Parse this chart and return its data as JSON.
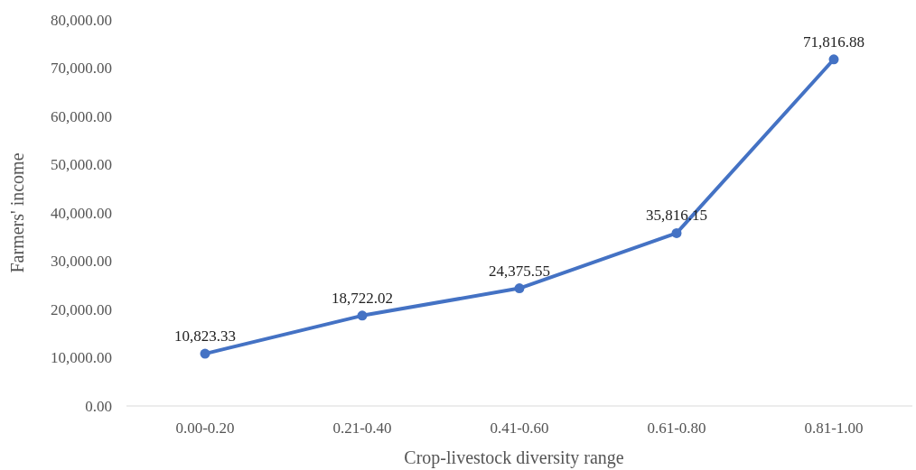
{
  "chart_data": {
    "type": "line",
    "xlabel": "Crop-livestock diversity range",
    "ylabel": "Farmers' income",
    "categories": [
      "0.00-0.20",
      "0.21-0.40",
      "0.41-0.60",
      "0.61-0.80",
      "0.81-1.00"
    ],
    "series": [
      {
        "color": "#4472c4",
        "values": [
          10823.33,
          18722.02,
          24375.55,
          35816.15,
          71816.88
        ],
        "value_labels": [
          "10,823.33",
          "18,722.02",
          "24,375.55",
          "35,816.15",
          "71,816.88"
        ]
      }
    ],
    "ylim": [
      0,
      80000
    ],
    "yticks": [
      {
        "value": 0,
        "label": "0.00"
      },
      {
        "value": 10000,
        "label": "10,000.00"
      },
      {
        "value": 20000,
        "label": "20,000.00"
      },
      {
        "value": 30000,
        "label": "30,000.00"
      },
      {
        "value": 40000,
        "label": "40,000.00"
      },
      {
        "value": 50000,
        "label": "50,000.00"
      },
      {
        "value": 60000,
        "label": "60,000.00"
      },
      {
        "value": 70000,
        "label": "70,000.00"
      },
      {
        "value": 80000,
        "label": "80,000.00"
      }
    ],
    "marker": "circle",
    "line_style": "solid",
    "grid": false
  }
}
